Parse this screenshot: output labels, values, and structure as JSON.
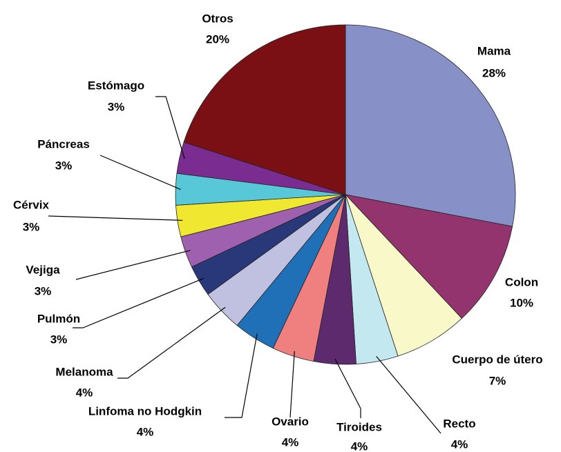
{
  "chart_data": {
    "type": "pie",
    "categories": [
      "Mama",
      "Colon",
      "Cuerpo de útero",
      "Recto",
      "Tiroides",
      "Ovario",
      "Linfoma no Hodgkin",
      "Melanoma",
      "Pulmón",
      "Vejiga",
      "Cérvix",
      "Páncreas",
      "Estómago",
      "Otros"
    ],
    "values": [
      28,
      10,
      7,
      4,
      4,
      4,
      4,
      4,
      3,
      3,
      3,
      3,
      3,
      20
    ],
    "value_labels": [
      "28%",
      "10%",
      "7%",
      "4%",
      "4%",
      "4%",
      "4%",
      "4%",
      "3%",
      "3%",
      "3%",
      "3%",
      "3%",
      "20%"
    ],
    "colors": [
      "#8890c8",
      "#94346e",
      "#f8f8c8",
      "#c4e8ef",
      "#5e2a6e",
      "#f08080",
      "#2070b8",
      "#c0c0e0",
      "#283878",
      "#a060b0",
      "#f0e830",
      "#58c8d8",
      "#7a2c90",
      "#7a1014"
    ]
  }
}
